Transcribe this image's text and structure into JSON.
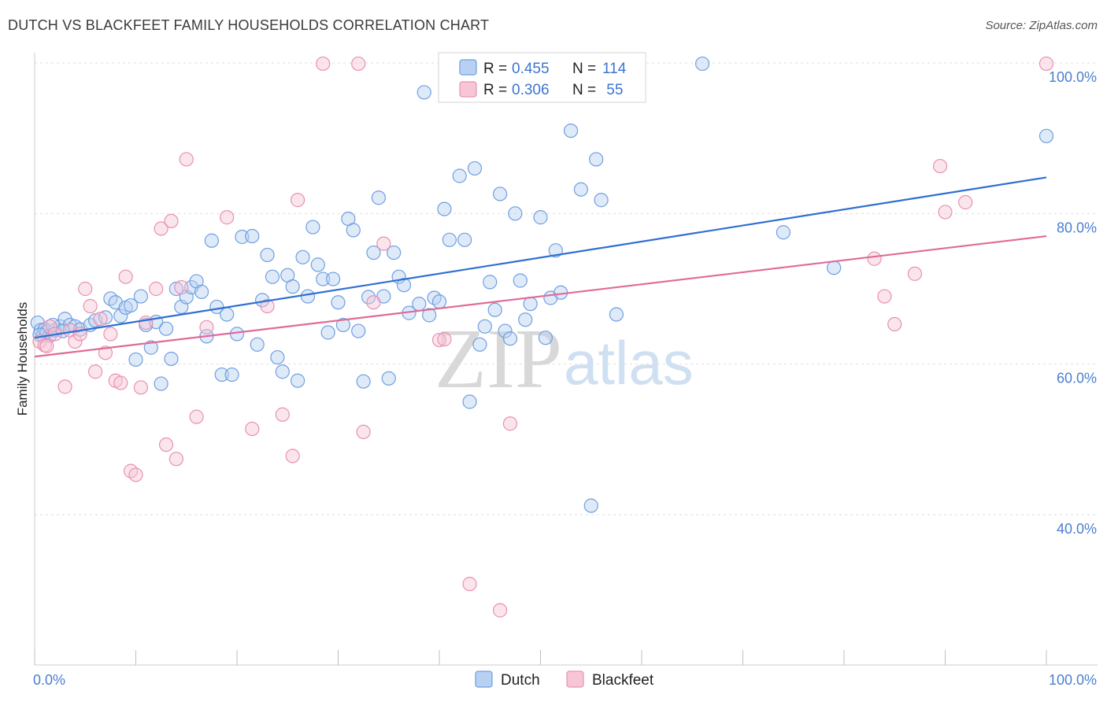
{
  "title": "DUTCH VS BLACKFEET FAMILY HOUSEHOLDS CORRELATION CHART",
  "source": "Source: ZipAtlas.com",
  "watermark": {
    "zip": "ZIP",
    "atlas": "atlas"
  },
  "chart_data": {
    "type": "scatter",
    "title": "DUTCH VS BLACKFEET FAMILY HOUSEHOLDS CORRELATION CHART",
    "xlabel": "",
    "ylabel": "Family Households",
    "xlim": [
      0,
      100
    ],
    "ylim": [
      20,
      102
    ],
    "x_tick_labels": [
      {
        "value": 0,
        "label": "0.0%"
      },
      {
        "value": 100,
        "label": "100.0%"
      }
    ],
    "y_tick_labels": [
      {
        "value": 40,
        "label": "40.0%"
      },
      {
        "value": 60,
        "label": "60.0%"
      },
      {
        "value": 80,
        "label": "80.0%"
      },
      {
        "value": 100,
        "label": "100.0%"
      }
    ],
    "grid": true,
    "legend": {
      "top": [
        {
          "series": "Dutch",
          "r_label": "R =",
          "r_value": "0.455",
          "n_label": "N =",
          "n_value": "114"
        },
        {
          "series": "Blackfeet",
          "r_label": "R =",
          "r_value": "0.306",
          "n_label": "N =",
          "n_value": " 55"
        }
      ],
      "bottom": [
        "Dutch",
        "Blackfeet"
      ]
    },
    "series": [
      {
        "name": "Dutch",
        "color": "#6f9fe0",
        "fill": "#b8d0f2",
        "line_color": "#2f6fd0",
        "trend": {
          "x": [
            0,
            100
          ],
          "y": [
            63.5,
            84.8
          ]
        },
        "points": [
          [
            0.3,
            65.5
          ],
          [
            0.6,
            64.5
          ],
          [
            0.8,
            63.8
          ],
          [
            1.0,
            64.6
          ],
          [
            1.2,
            64.3
          ],
          [
            1.5,
            63.8
          ],
          [
            2.0,
            64.5
          ],
          [
            2.5,
            65.0
          ],
          [
            3.0,
            66.0
          ],
          [
            3.5,
            65.2
          ],
          [
            4.0,
            65.0
          ],
          [
            4.5,
            64.6
          ],
          [
            5.5,
            65.2
          ],
          [
            6.0,
            65.8
          ],
          [
            7.0,
            66.2
          ],
          [
            7.5,
            68.7
          ],
          [
            8.0,
            68.2
          ],
          [
            8.5,
            66.4
          ],
          [
            9.0,
            67.5
          ],
          [
            9.5,
            67.8
          ],
          [
            10.0,
            60.6
          ],
          [
            10.5,
            69.0
          ],
          [
            11.0,
            65.2
          ],
          [
            11.5,
            62.2
          ],
          [
            12.0,
            65.6
          ],
          [
            12.5,
            57.4
          ],
          [
            13.0,
            64.7
          ],
          [
            13.5,
            60.7
          ],
          [
            14.0,
            70.0
          ],
          [
            14.5,
            67.6
          ],
          [
            15.0,
            68.9
          ],
          [
            15.5,
            70.2
          ],
          [
            16.0,
            71.0
          ],
          [
            16.5,
            69.6
          ],
          [
            17.0,
            63.7
          ],
          [
            17.5,
            76.4
          ],
          [
            18.0,
            67.6
          ],
          [
            18.5,
            58.6
          ],
          [
            19.0,
            66.6
          ],
          [
            19.5,
            58.6
          ],
          [
            20.0,
            64.0
          ],
          [
            20.5,
            76.9
          ],
          [
            21.5,
            77.0
          ],
          [
            22.0,
            62.6
          ],
          [
            22.5,
            68.5
          ],
          [
            23.0,
            74.5
          ],
          [
            23.5,
            71.6
          ],
          [
            24.0,
            60.9
          ],
          [
            24.5,
            59.0
          ],
          [
            25.0,
            71.8
          ],
          [
            25.5,
            70.3
          ],
          [
            26.0,
            57.8
          ],
          [
            26.5,
            74.2
          ],
          [
            27.0,
            69.0
          ],
          [
            27.5,
            78.2
          ],
          [
            28.0,
            73.2
          ],
          [
            28.5,
            71.3
          ],
          [
            29.0,
            64.2
          ],
          [
            29.5,
            71.3
          ],
          [
            30.0,
            68.2
          ],
          [
            30.5,
            65.2
          ],
          [
            31.0,
            79.3
          ],
          [
            31.5,
            77.8
          ],
          [
            32.0,
            64.4
          ],
          [
            32.5,
            57.7
          ],
          [
            33.0,
            68.9
          ],
          [
            33.5,
            74.8
          ],
          [
            34.0,
            82.1
          ],
          [
            34.5,
            69.0
          ],
          [
            35.0,
            58.1
          ],
          [
            35.5,
            74.8
          ],
          [
            36.0,
            71.6
          ],
          [
            36.5,
            70.5
          ],
          [
            37.0,
            66.8
          ],
          [
            38.0,
            68.0
          ],
          [
            38.5,
            96.1
          ],
          [
            39.0,
            66.5
          ],
          [
            39.5,
            68.8
          ],
          [
            40.0,
            68.3
          ],
          [
            40.5,
            80.6
          ],
          [
            41.0,
            76.5
          ],
          [
            42.0,
            85.0
          ],
          [
            42.5,
            76.5
          ],
          [
            43.0,
            55.0
          ],
          [
            43.5,
            86.0
          ],
          [
            44.0,
            62.6
          ],
          [
            44.5,
            65.0
          ],
          [
            45.0,
            70.9
          ],
          [
            45.5,
            67.2
          ],
          [
            46.0,
            82.6
          ],
          [
            46.5,
            64.4
          ],
          [
            47.0,
            63.4
          ],
          [
            47.5,
            80.0
          ],
          [
            48.0,
            71.1
          ],
          [
            48.5,
            65.9
          ],
          [
            49.0,
            68.0
          ],
          [
            50.0,
            79.5
          ],
          [
            50.5,
            63.5
          ],
          [
            51.0,
            68.8
          ],
          [
            51.5,
            75.1
          ],
          [
            52.0,
            69.5
          ],
          [
            53.0,
            91.0
          ],
          [
            54.0,
            83.2
          ],
          [
            55.0,
            41.2
          ],
          [
            55.5,
            87.2
          ],
          [
            56.0,
            81.8
          ],
          [
            57.5,
            66.6
          ],
          [
            66.0,
            99.9
          ],
          [
            74.0,
            77.5
          ],
          [
            79.0,
            72.8
          ],
          [
            100.0,
            90.3
          ],
          [
            0.5,
            63.9
          ],
          [
            1.8,
            65.2
          ],
          [
            2.8,
            64.4
          ]
        ]
      },
      {
        "name": "Blackfeet",
        "color": "#e891b0",
        "fill": "#f7c6d6",
        "line_color": "#e06a98",
        "trend": {
          "x": [
            0,
            100
          ],
          "y": [
            61.0,
            77.0
          ]
        },
        "points": [
          [
            0.5,
            63.0
          ],
          [
            1.0,
            62.5
          ],
          [
            1.5,
            65.0
          ],
          [
            2.0,
            64.0
          ],
          [
            3.0,
            57.0
          ],
          [
            3.5,
            64.5
          ],
          [
            4.0,
            63.0
          ],
          [
            4.5,
            64.0
          ],
          [
            5.0,
            70.0
          ],
          [
            5.5,
            67.7
          ],
          [
            6.0,
            59.0
          ],
          [
            6.5,
            66.0
          ],
          [
            7.0,
            61.5
          ],
          [
            7.5,
            64.0
          ],
          [
            8.0,
            57.8
          ],
          [
            8.5,
            57.5
          ],
          [
            9.0,
            71.6
          ],
          [
            9.5,
            45.8
          ],
          [
            10.0,
            45.3
          ],
          [
            10.5,
            56.9
          ],
          [
            11.0,
            65.5
          ],
          [
            12.0,
            70.0
          ],
          [
            12.5,
            78.0
          ],
          [
            13.0,
            49.3
          ],
          [
            13.5,
            79.0
          ],
          [
            14.0,
            47.4
          ],
          [
            14.5,
            70.2
          ],
          [
            15.0,
            87.2
          ],
          [
            16.0,
            53.0
          ],
          [
            17.0,
            64.9
          ],
          [
            19.0,
            79.5
          ],
          [
            21.5,
            51.4
          ],
          [
            23.0,
            67.7
          ],
          [
            24.5,
            53.3
          ],
          [
            25.5,
            47.8
          ],
          [
            26.0,
            81.8
          ],
          [
            28.5,
            99.9
          ],
          [
            32.0,
            99.9
          ],
          [
            32.5,
            51.0
          ],
          [
            33.5,
            68.2
          ],
          [
            34.5,
            76.0
          ],
          [
            40.0,
            63.2
          ],
          [
            40.5,
            63.3
          ],
          [
            43.0,
            30.8
          ],
          [
            46.0,
            27.3
          ],
          [
            47.0,
            52.1
          ],
          [
            83.0,
            74.0
          ],
          [
            84.0,
            69.0
          ],
          [
            85.0,
            65.3
          ],
          [
            87.0,
            72.0
          ],
          [
            89.5,
            86.3
          ],
          [
            90.0,
            80.2
          ],
          [
            92.0,
            81.5
          ],
          [
            100.0,
            99.9
          ],
          [
            1.2,
            62.4
          ]
        ]
      }
    ]
  }
}
